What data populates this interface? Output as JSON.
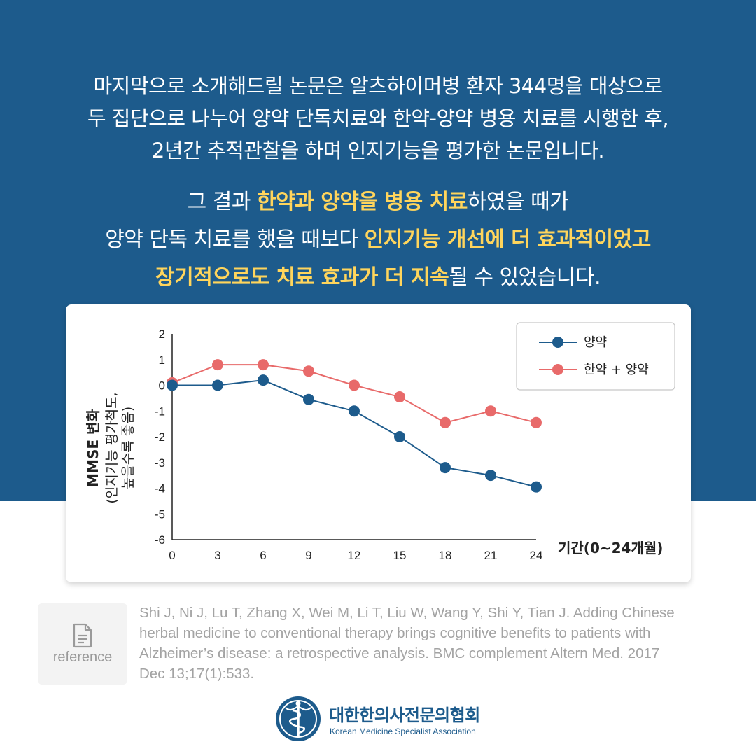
{
  "intro": {
    "line1": "마지막으로 소개해드릴 논문은 알츠하이머병 환자 344명을 대상으로",
    "line2": "두 집단으로 나누어 양약 단독치료와 한약-양약 병용 치료를 시행한 후,",
    "line3": "2년간 추적관찰을 하며 인지기능을 평가한 논문입니다."
  },
  "result": {
    "l1a": "그 결과 ",
    "l1b": "한약과 양약을 병용 치료",
    "l1c": "하였을 때가",
    "l2a": "양약 단독 치료를 했을 때보다 ",
    "l2b": "인지기능 개선에 더 효과적이었고",
    "l3a": "장기적으로도 치료 효과가 더 지속",
    "l3b": "될 수 있었습니다."
  },
  "chart_data": {
    "type": "line",
    "x": [
      0,
      3,
      6,
      9,
      12,
      15,
      18,
      21,
      24
    ],
    "xticks": [
      "0",
      "3",
      "6",
      "9",
      "12",
      "15",
      "18",
      "21",
      "24"
    ],
    "yticks": [
      "2",
      "1",
      "0",
      "-1",
      "-2",
      "-3",
      "-4",
      "-5",
      "-6"
    ],
    "ylim": [
      -6,
      2
    ],
    "xlim": [
      0,
      24
    ],
    "xlabel": "기간(0~24개월)",
    "ylabel": "MMSE 변화",
    "ylabel_sub1": "(인지기능 평가척도,",
    "ylabel_sub2": "높을수록 좋음)",
    "legend_position": "top-right",
    "grid": false,
    "series": [
      {
        "name": "양약",
        "color": "#1d5b8c",
        "values": [
          0,
          0,
          0.2,
          -0.55,
          -1.0,
          -2.0,
          -3.2,
          -3.5,
          -3.95
        ]
      },
      {
        "name": "한약 + 양약",
        "color": "#e86a6a",
        "values": [
          0.1,
          0.8,
          0.8,
          0.55,
          0.0,
          -0.45,
          -1.45,
          -1.0,
          -1.45
        ]
      }
    ]
  },
  "reference": {
    "label": "reference",
    "line1": "Shi J, Ni J, Lu T, Zhang X, Wei M, Li T, Liu W, Wang Y, Shi Y, Tian J. Adding Chinese",
    "line2": "herbal medicine to conventional therapy brings cognitive benefits to patients with",
    "line3": "Alzheimer’s disease: a retrospective analysis. BMC complement Altern Med. 2017",
    "line4": "Dec 13;17(1):533."
  },
  "organization": {
    "name_ko": "대한한의사전문의협회",
    "name_en": "Korean Medicine Specialist Association"
  },
  "colors": {
    "brand": "#1d5b8c",
    "highlight": "#ffd55c",
    "series_red": "#e86a6a"
  },
  "icons": {
    "reference": "document-icon",
    "logo": "caduceus-logo-icon"
  }
}
